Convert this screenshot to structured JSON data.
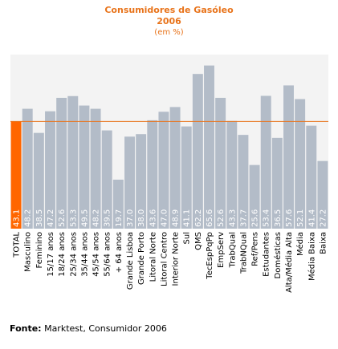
{
  "chart_data": {
    "type": "bar",
    "title": "Consumidores de Gasóleo",
    "subtitle": "2006",
    "unit_label": "(em %)",
    "categories": [
      "TOTAL",
      "Masculino",
      "Feminino",
      "15/17 anos",
      "18/24 anos",
      "25/34 anos",
      "35/44 anos",
      "45/54 anos",
      "55/64 anos",
      "+ 64 anos",
      "Grande Lisboa",
      "Grande Porto",
      "Litoral Norte",
      "Litoral Centro",
      "Interior Norte",
      "Sul",
      "QMS",
      "TecEspPqPp",
      "EmpServ",
      "TrabQual",
      "TrabNQual",
      "Ref/Pens",
      "Estudantes",
      "Domésticas",
      "Alta/Média Alta",
      "Média",
      "Média Baixa",
      "Baixa"
    ],
    "values": [
      43.1,
      48.2,
      38.5,
      47.2,
      52.6,
      53.3,
      49.5,
      48.2,
      39.5,
      19.7,
      37.0,
      38.0,
      43.6,
      47.0,
      48.9,
      41.1,
      62.2,
      65.6,
      52.6,
      43.3,
      37.7,
      25.6,
      53.4,
      36.5,
      57.6,
      52.1,
      41.4,
      27.2
    ],
    "value_labels": [
      "43.1",
      "48.2",
      "38.5",
      "47.2",
      "52.6",
      "53.3",
      "49.5",
      "48.2",
      "39.5",
      "19.7",
      "37.0",
      "38.0",
      "43.6",
      "47.0",
      "48.9",
      "41.1",
      "62.2",
      "65.6",
      "52.6",
      "43.3",
      "37.7",
      "25.6",
      "53.4",
      "36.5",
      "57.6",
      "52.1",
      "41.4",
      "27.2"
    ],
    "highlight_index": 0,
    "reference_line": 43.1,
    "ylim": [
      0,
      70
    ],
    "grid": false,
    "colors": {
      "bar": "#b3bcc8",
      "highlight": "#ff6600",
      "reference_line": "#e8731a",
      "plot_background": "#f3f3f3",
      "title": "#e8731a",
      "value_label": "#ffffff"
    }
  },
  "source": {
    "label": "Fonte:",
    "text": "Marktest, Consumidor 2006"
  }
}
